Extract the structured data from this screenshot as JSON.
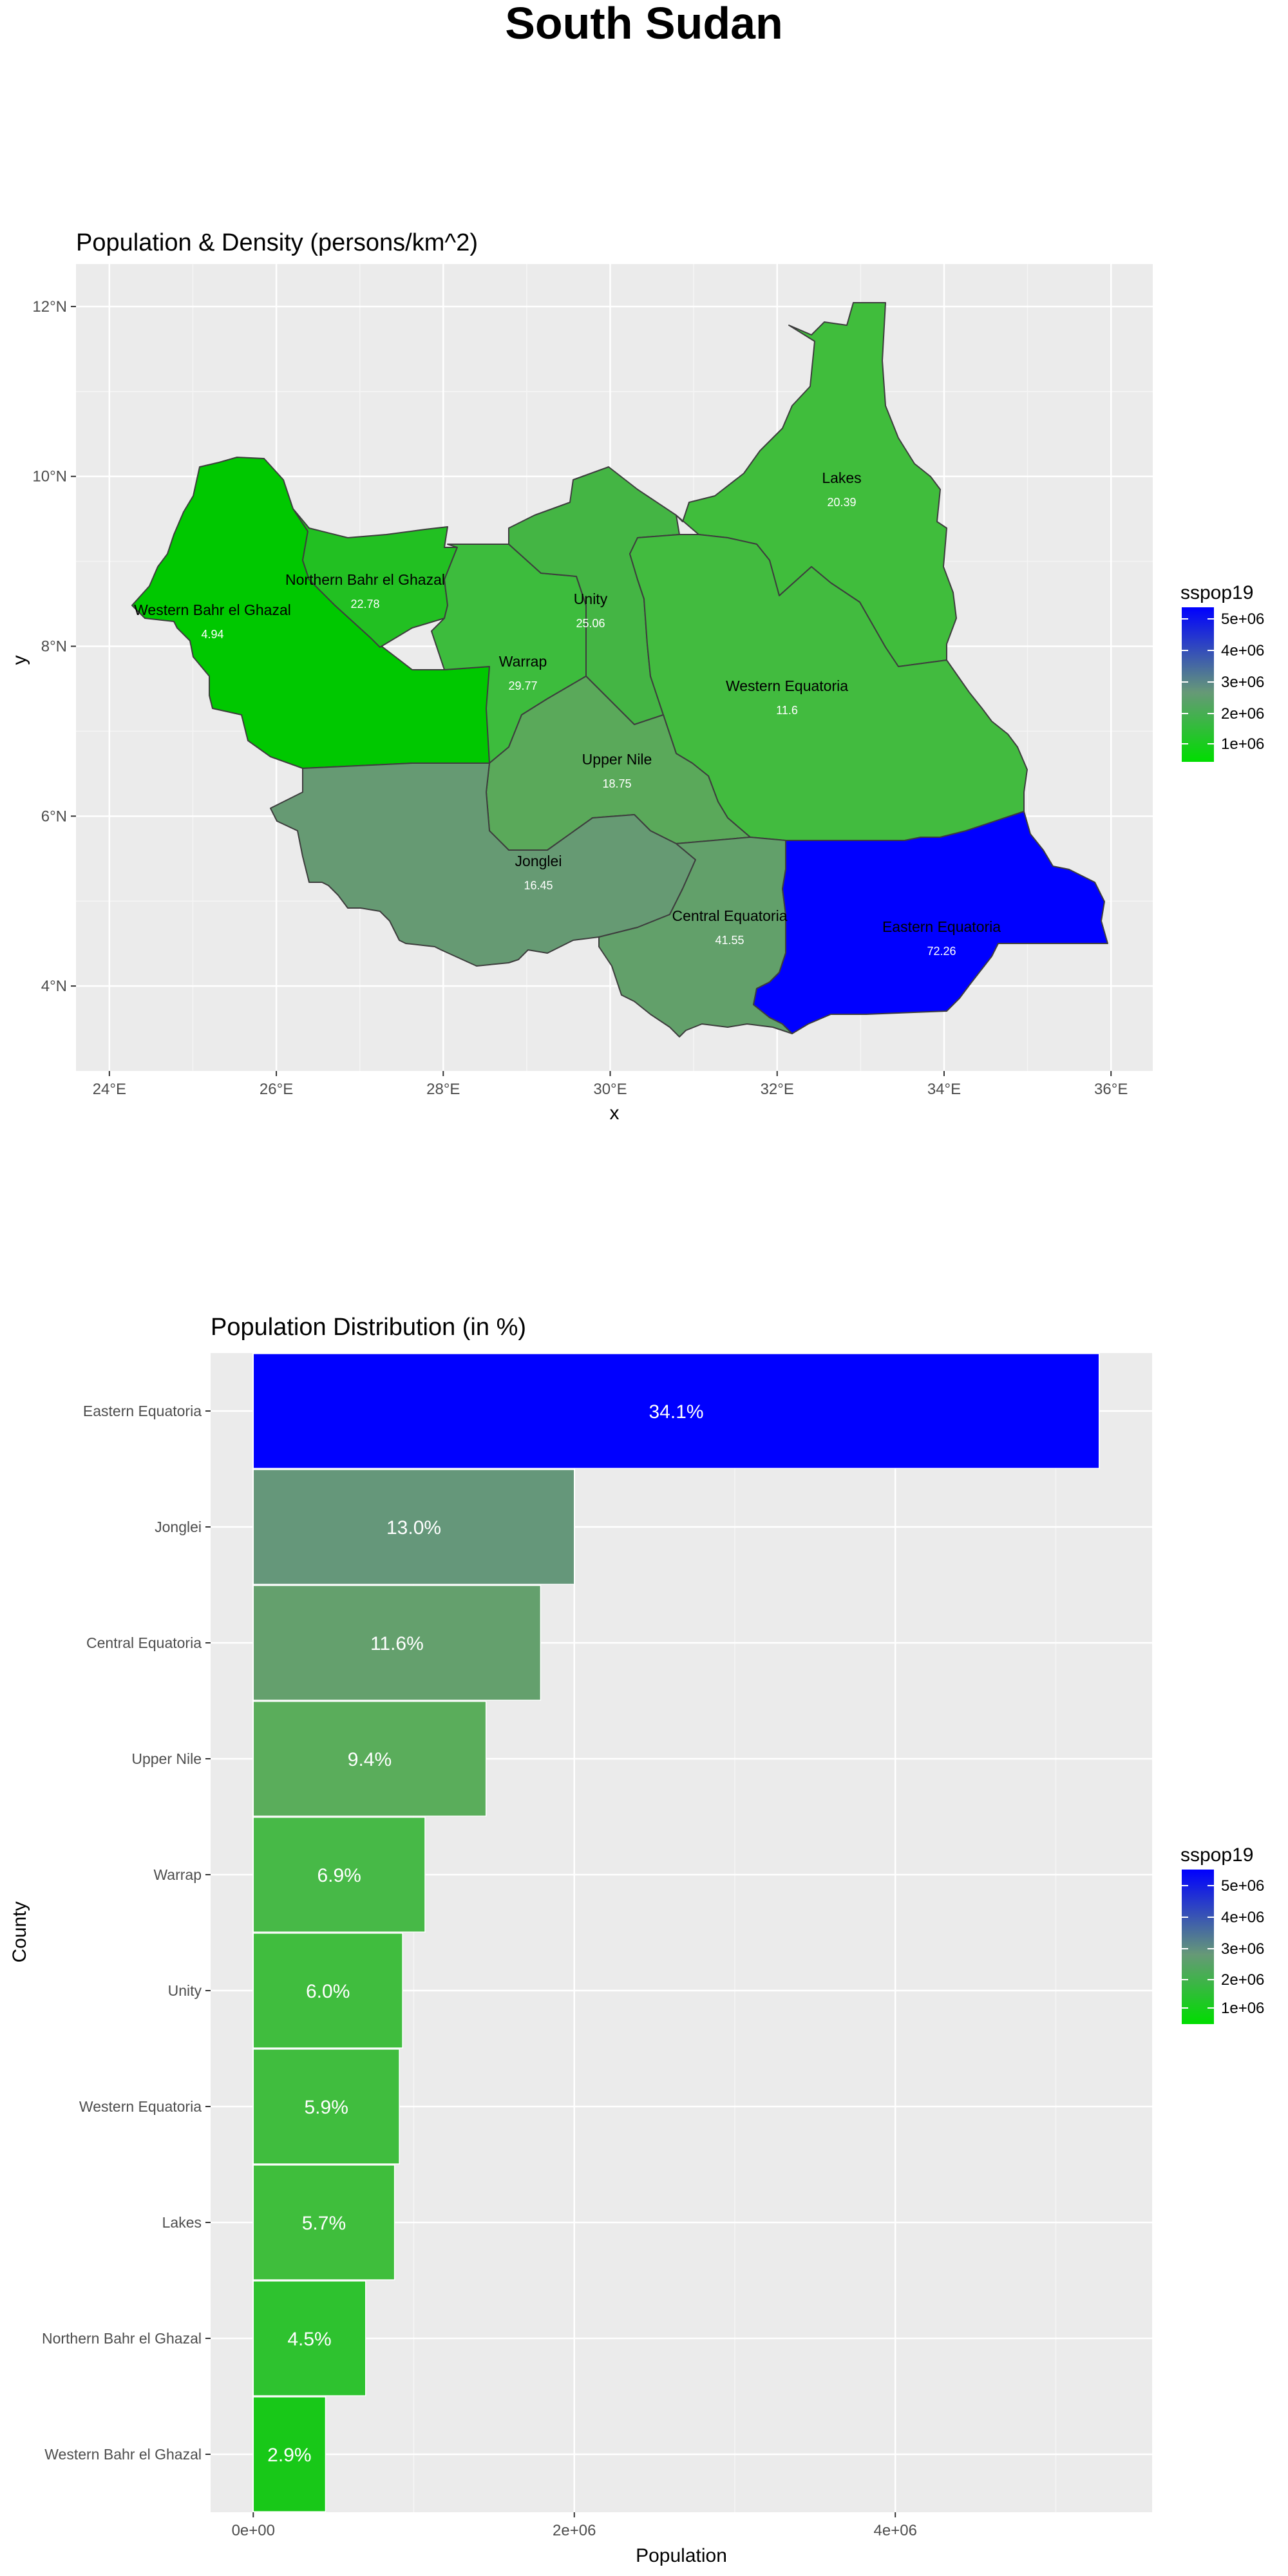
{
  "title": "South Sudan",
  "chart_data": [
    {
      "type": "map",
      "title": "Population & Density (persons/km^2)",
      "xlabel": "x",
      "ylabel": "y",
      "x_ticks": [
        "24°E",
        "26°E",
        "28°E",
        "30°E",
        "32°E",
        "34°E",
        "36°E"
      ],
      "y_ticks": [
        "4°N",
        "6°N",
        "8°N",
        "10°N",
        "12°N"
      ],
      "xlim": [
        23.6,
        36.5
      ],
      "ylim": [
        3.0,
        12.5
      ],
      "legend": {
        "title": "sspop19",
        "labels": [
          "5e+06",
          "4e+06",
          "3e+06",
          "2e+06",
          "1e+06"
        ],
        "position": "right",
        "low_color": "#00cc00",
        "mid_color": "#669977",
        "high_color": "#0000ff"
      },
      "regions": [
        {
          "name": "Western Bahr el Ghazal",
          "density": "4.94",
          "color": "#00c800"
        },
        {
          "name": "Northern Bahr el Ghazal",
          "density": "22.78",
          "color": "#22c022"
        },
        {
          "name": "Unity",
          "density": "25.06",
          "color": "#3dbc3d"
        },
        {
          "name": "Warrap",
          "density": "29.77",
          "color": "#44b544"
        },
        {
          "name": "Lakes",
          "density": "20.39",
          "color": "#40bd3c"
        },
        {
          "name": "Western Equatoria",
          "density": "11.6",
          "color": "#42bb3f"
        },
        {
          "name": "Upper Nile",
          "density": "18.75",
          "color": "#5aa95a"
        },
        {
          "name": "Jonglei",
          "density": "16.45",
          "color": "#669a73"
        },
        {
          "name": "Central Equatoria",
          "density": "41.55",
          "color": "#62a06a"
        },
        {
          "name": "Eastern Equatoria",
          "density": "72.26",
          "color": "#0000ff"
        }
      ]
    },
    {
      "type": "bar",
      "orientation": "horizontal",
      "title": "Population Distribution (in %)",
      "xlabel": "Population",
      "ylabel": "County",
      "x_ticks": [
        "0e+00",
        "2e+06",
        "4e+06"
      ],
      "xlim": [
        -266000,
        5600000
      ],
      "categories": [
        "Eastern Equatoria",
        "Jonglei",
        "Central Equatoria",
        "Upper Nile",
        "Warrap",
        "Unity",
        "Western Equatoria",
        "Lakes",
        "Northern Bahr el Ghazal",
        "Western Bahr el Ghazal"
      ],
      "values": [
        5270000,
        2000000,
        1790000,
        1450000,
        1070000,
        930000,
        910000,
        880000,
        700000,
        450000
      ],
      "labels": [
        "34.1%",
        "13.0%",
        "11.6%",
        "9.4%",
        "6.9%",
        "6.0%",
        "5.9%",
        "5.7%",
        "4.5%",
        "2.9%"
      ],
      "colors": [
        "#0000ff",
        "#65977a",
        "#64a06d",
        "#5aad5b",
        "#47b947",
        "#40bd3e",
        "#40bd3e",
        "#3fbe3c",
        "#2ec22f",
        "#18c818"
      ],
      "legend": {
        "title": "sspop19",
        "labels": [
          "5e+06",
          "4e+06",
          "3e+06",
          "2e+06",
          "1e+06"
        ],
        "position": "right"
      }
    }
  ]
}
